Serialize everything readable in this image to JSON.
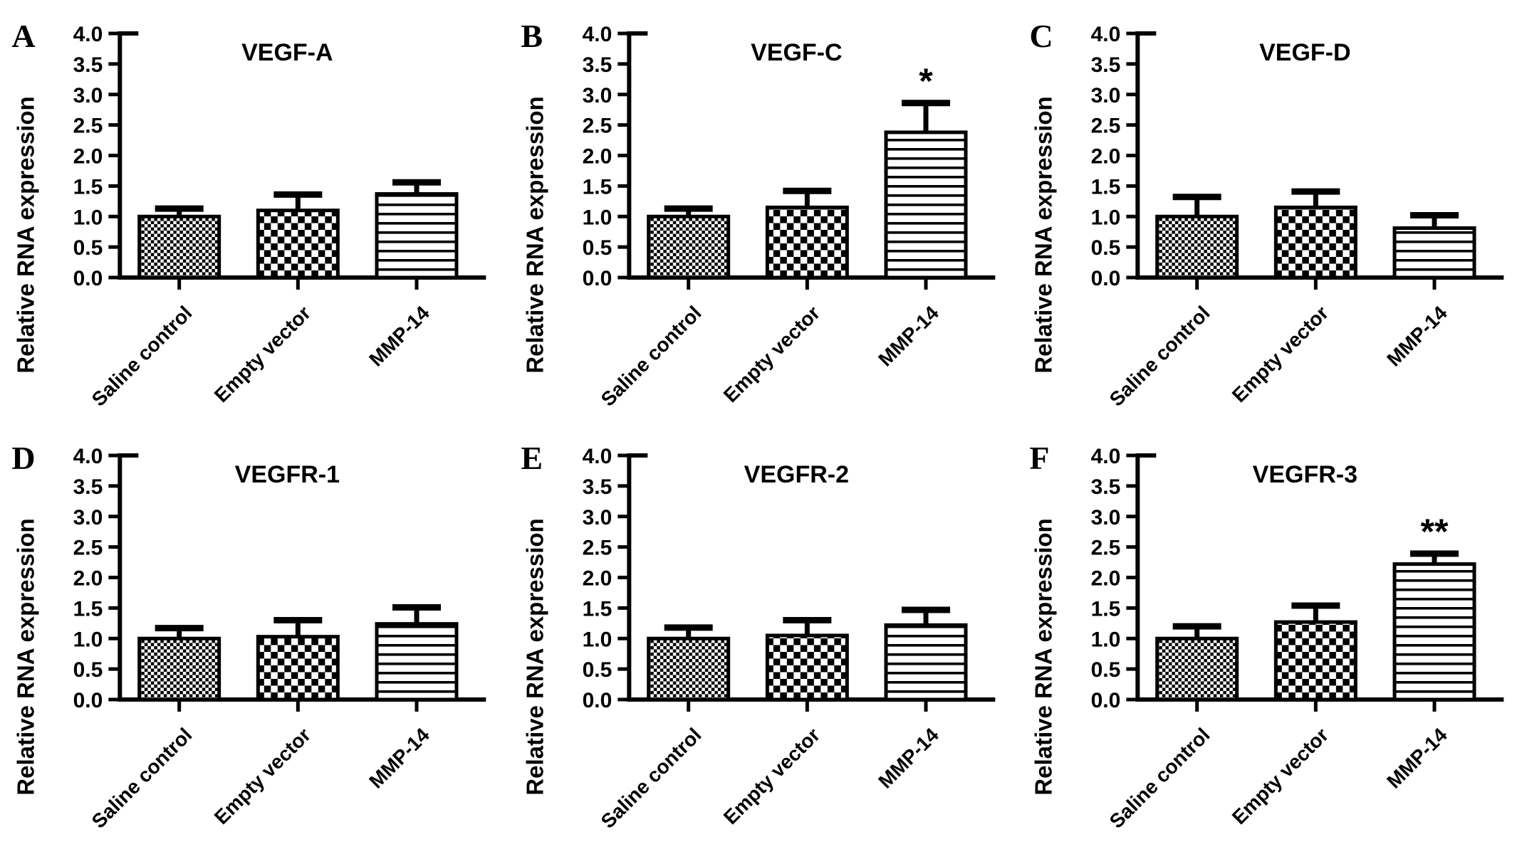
{
  "figure": {
    "background_color": "#ffffff",
    "ink_color": "#000000",
    "description": "Six-panel bar chart figure of relative RNA expression"
  },
  "chart_data": {
    "type": "bar",
    "layout": "2 rows x 3 columns",
    "ylabel": "Relative RNA expression",
    "xlabel": "",
    "ylim": [
      0,
      4
    ],
    "ytick_step": 0.5,
    "ytick_labels": [
      "0.0",
      "0.5",
      "1.0",
      "1.5",
      "2.0",
      "2.5",
      "3.0",
      "3.5",
      "4.0"
    ],
    "categories": [
      "Saline control",
      "Empty vector",
      "MMP-14"
    ],
    "bar_patterns": [
      "fine-checker",
      "checker",
      "horizontal-lines"
    ],
    "grid": false,
    "legend_position": "none",
    "error_bars": "upper only, T-cap",
    "panels": [
      {
        "panel_label": "A",
        "title": "VEGF-A",
        "values": [
          1.0,
          1.1,
          1.37
        ],
        "errors_upper": [
          0.13,
          0.26,
          0.19
        ],
        "significance": [
          "",
          "",
          ""
        ]
      },
      {
        "panel_label": "B",
        "title": "VEGF-C",
        "values": [
          1.0,
          1.15,
          2.38
        ],
        "errors_upper": [
          0.13,
          0.27,
          0.48
        ],
        "significance": [
          "",
          "",
          "*"
        ]
      },
      {
        "panel_label": "C",
        "title": "VEGF-D",
        "values": [
          1.0,
          1.15,
          0.81
        ],
        "errors_upper": [
          0.32,
          0.26,
          0.21
        ],
        "significance": [
          "",
          "",
          ""
        ]
      },
      {
        "panel_label": "D",
        "title": "VEGFR-1",
        "values": [
          1.0,
          1.03,
          1.24
        ],
        "errors_upper": [
          0.17,
          0.27,
          0.27
        ],
        "significance": [
          "",
          "",
          ""
        ]
      },
      {
        "panel_label": "E",
        "title": "VEGFR-2",
        "values": [
          1.0,
          1.05,
          1.22
        ],
        "errors_upper": [
          0.18,
          0.25,
          0.25
        ],
        "significance": [
          "",
          "",
          ""
        ]
      },
      {
        "panel_label": "F",
        "title": "VEGFR-3",
        "values": [
          1.0,
          1.27,
          2.22
        ],
        "errors_upper": [
          0.2,
          0.27,
          0.17
        ],
        "significance": [
          "",
          "",
          "**"
        ]
      }
    ]
  }
}
